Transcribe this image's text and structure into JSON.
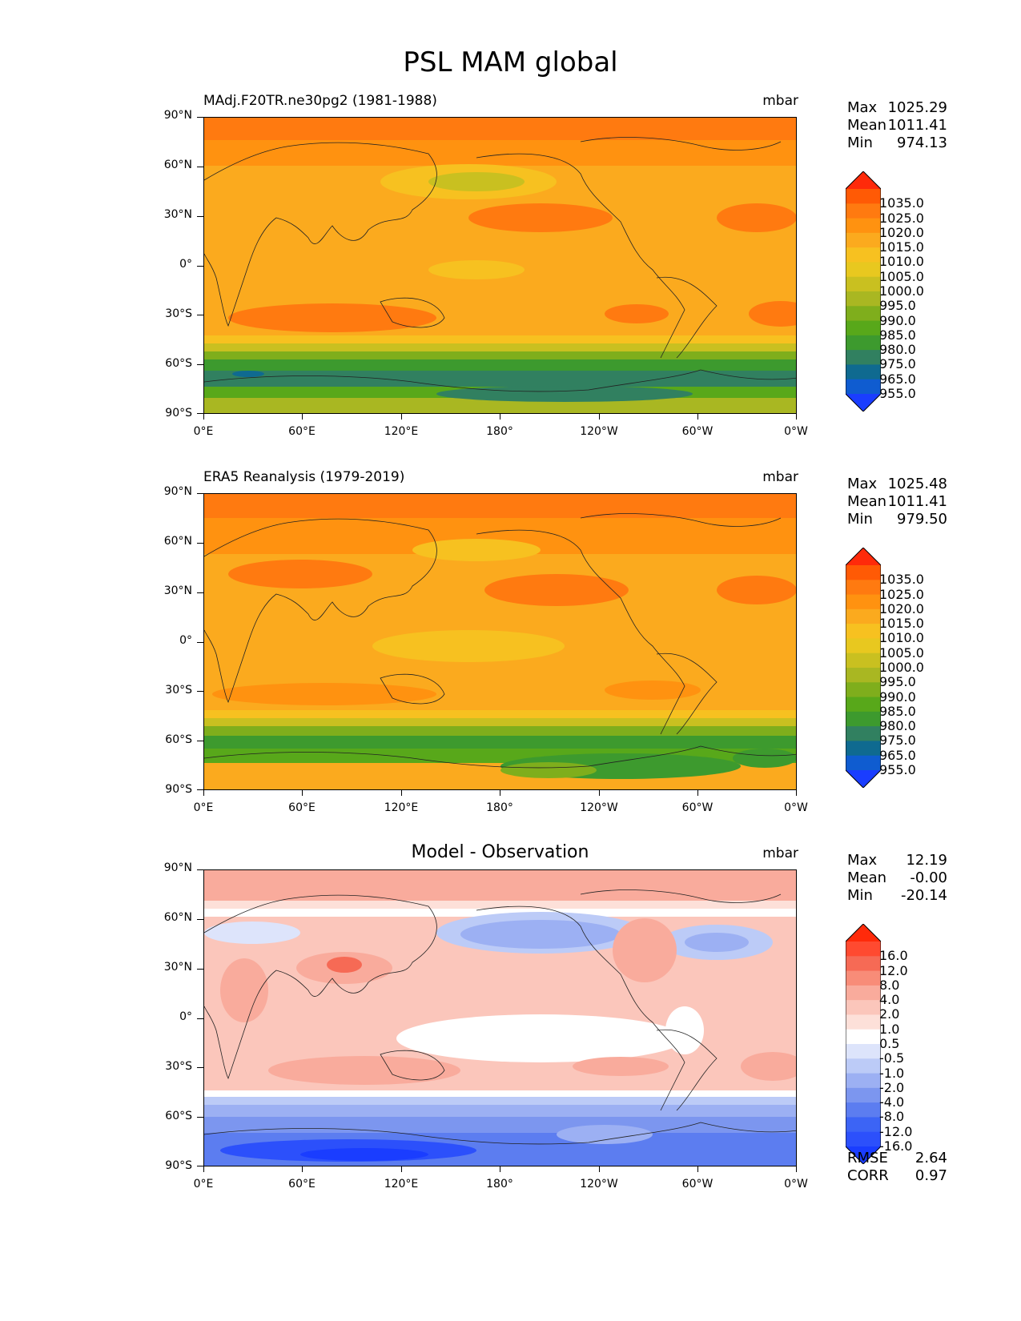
{
  "figure_title": "PSL MAM global",
  "lat_labels": [
    "90°N",
    "60°N",
    "30°N",
    "0°",
    "30°S",
    "60°S",
    "90°S"
  ],
  "lon_labels": [
    "0°E",
    "60°E",
    "120°E",
    "180°",
    "120°W",
    "60°W",
    "0°W"
  ],
  "panels": [
    {
      "title": "MAdj.F20TR.ne30pg2 (1981-1988)",
      "units": "mbar",
      "stats": {
        "max_label": "Max",
        "max": "1025.29",
        "mean_label": "Mean",
        "mean": "1011.41",
        "min_label": "Min",
        "min": "974.13"
      },
      "colorbar_labels": [
        "1035.0",
        "1025.0",
        "1020.0",
        "1015.0",
        "1010.0",
        "1005.0",
        "1000.0",
        "995.0",
        "990.0",
        "985.0",
        "980.0",
        "975.0",
        "965.0",
        "955.0"
      ],
      "colors": [
        "#ff2a0a",
        "#ff5a05",
        "#ff7a10",
        "#ff9210",
        "#fbaa1e",
        "#f7c120",
        "#e8c81f",
        "#c9c020",
        "#a9b722",
        "#7fae1c",
        "#58a81a",
        "#3d9a2e",
        "#318060",
        "#0f6a90",
        "#0f5cd0",
        "#1a3dff"
      ]
    },
    {
      "title": "ERA5 Reanalysis (1979-2019)",
      "units": "mbar",
      "stats": {
        "max_label": "Max",
        "max": "1025.48",
        "mean_label": "Mean",
        "mean": "1011.41",
        "min_label": "Min",
        "min": "979.50"
      },
      "colorbar_labels": [
        "1035.0",
        "1025.0",
        "1020.0",
        "1015.0",
        "1010.0",
        "1005.0",
        "1000.0",
        "995.0",
        "990.0",
        "985.0",
        "980.0",
        "975.0",
        "965.0",
        "955.0"
      ],
      "colors": [
        "#ff2a0a",
        "#ff5a05",
        "#ff7a10",
        "#ff9210",
        "#fbaa1e",
        "#f7c120",
        "#e8c81f",
        "#c9c020",
        "#a9b722",
        "#7fae1c",
        "#58a81a",
        "#3d9a2e",
        "#318060",
        "#0f6a90",
        "#0f5cd0",
        "#1a3dff"
      ]
    },
    {
      "title": "Model - Observation",
      "units": "mbar",
      "stats": {
        "max_label": "Max",
        "max": "12.19",
        "mean_label": "Mean",
        "mean": "-0.00",
        "min_label": "Min",
        "min": "-20.14"
      },
      "colorbar_labels": [
        "16.0",
        "12.0",
        "8.0",
        "4.0",
        "2.0",
        "1.0",
        "0.5",
        "-0.5",
        "-1.0",
        "-2.0",
        "-4.0",
        "-8.0",
        "-12.0",
        "-16.0"
      ],
      "colors": [
        "#ff2a0a",
        "#ff4a30",
        "#f66a55",
        "#f88c78",
        "#f9ab9c",
        "#fbc6bb",
        "#fde0d9",
        "#ffffff",
        "#dde4fb",
        "#bccbf7",
        "#9cb0f3",
        "#7c96ef",
        "#5c7df0",
        "#3c64f5",
        "#2c50fb",
        "#1a3dff"
      ],
      "rmse_label": "RMSE",
      "rmse": "2.64",
      "corr_label": "CORR",
      "corr": "0.97"
    }
  ]
}
